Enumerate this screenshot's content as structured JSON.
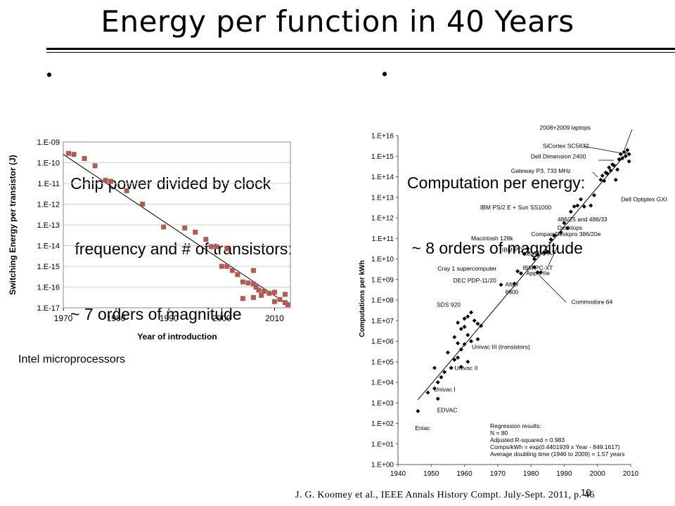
{
  "slide": {
    "title": "Energy per function in 40 Years",
    "bullet_left": [
      "Chip power divided by clock",
      " frequency and # of transistors:",
      "~ 7 orders of magnitude"
    ],
    "bullet_right": [
      "Computation per energy:",
      " ~ 8 orders of magnitude"
    ],
    "bullet_symbol": "•",
    "caption": "Intel microprocessors",
    "citation": "J. G. Koomey et al., IEEE Annals History Compt. July-Sept. 2011, p. 46",
    "page_number": "10"
  },
  "chart_data": [
    {
      "type": "scatter",
      "title": "",
      "xlabel": "Year of introduction",
      "ylabel": "Switching Energy per transistor (J)",
      "xlim": [
        1970,
        2013
      ],
      "ylim_exp": [
        -17,
        -9
      ],
      "log_scale_y": true,
      "x_ticks": [
        1970,
        1980,
        1990,
        2000,
        2010
      ],
      "y_ticks": [
        "1.E-09",
        "1.E-10",
        "1.E-11",
        "1.E-12",
        "1.E-13",
        "1.E-14",
        "1.E-15",
        "1.E-16",
        "1.E-17"
      ],
      "marker_color": "#b05a52",
      "trendline": {
        "x": [
          1970,
          2012
        ],
        "y_exp": [
          -9.6,
          -16.75
        ]
      },
      "points": [
        {
          "x": 1971,
          "y_exp": -9.55
        },
        {
          "x": 1972,
          "y_exp": -9.6
        },
        {
          "x": 1974,
          "y_exp": -9.8
        },
        {
          "x": 1976,
          "y_exp": -10.15
        },
        {
          "x": 1978,
          "y_exp": -10.85
        },
        {
          "x": 1979,
          "y_exp": -10.9
        },
        {
          "x": 1982,
          "y_exp": -11.35
        },
        {
          "x": 1985,
          "y_exp": -12.0
        },
        {
          "x": 1989,
          "y_exp": -13.1
        },
        {
          "x": 1993,
          "y_exp": -13.15
        },
        {
          "x": 1995,
          "y_exp": -13.35
        },
        {
          "x": 1997,
          "y_exp": -13.7
        },
        {
          "x": 1998,
          "y_exp": -14.05
        },
        {
          "x": 1999,
          "y_exp": -14.05
        },
        {
          "x": 2001,
          "y_exp": -14.15
        },
        {
          "x": 2000,
          "y_exp": -15.0
        },
        {
          "x": 2001,
          "y_exp": -15.0
        },
        {
          "x": 2002,
          "y_exp": -15.2
        },
        {
          "x": 2003,
          "y_exp": -15.4
        },
        {
          "x": 2004,
          "y_exp": -15.75
        },
        {
          "x": 2004,
          "y_exp": -16.55
        },
        {
          "x": 2005,
          "y_exp": -15.8
        },
        {
          "x": 2006,
          "y_exp": -15.85
        },
        {
          "x": 2006,
          "y_exp": -15.2
        },
        {
          "x": 2006,
          "y_exp": -16.5
        },
        {
          "x": 2006.5,
          "y_exp": -16.0
        },
        {
          "x": 2007,
          "y_exp": -16.15
        },
        {
          "x": 2007.5,
          "y_exp": -16.4
        },
        {
          "x": 2008,
          "y_exp": -16.2
        },
        {
          "x": 2009,
          "y_exp": -16.3
        },
        {
          "x": 2010,
          "y_exp": -16.25
        },
        {
          "x": 2010,
          "y_exp": -16.7
        },
        {
          "x": 2011,
          "y_exp": -16.6
        },
        {
          "x": 2012,
          "y_exp": -16.35
        },
        {
          "x": 2012,
          "y_exp": -16.75
        },
        {
          "x": 2012.5,
          "y_exp": -16.85
        }
      ]
    },
    {
      "type": "scatter",
      "title": "",
      "xlabel": "",
      "ylabel": "Computations per kWh",
      "xlim": [
        1940,
        2010
      ],
      "ylim_exp": [
        0,
        16
      ],
      "log_scale_y": true,
      "x_ticks": [
        1940,
        1950,
        1960,
        1970,
        1980,
        1990,
        2000,
        2010
      ],
      "y_ticks": [
        "1.E+00",
        "1.E+01",
        "1.E+02",
        "1.E+03",
        "1.E+04",
        "1.E+05",
        "1.E+06",
        "1.E+07",
        "1.E+08",
        "1.E+09",
        "1.E+10",
        "1.E+11",
        "1.E+12",
        "1.E+13",
        "1.E+14",
        "1.E+15",
        "1.E+16"
      ],
      "marker_color": "#000000",
      "trendline": {
        "x": [
          1946,
          2009
        ],
        "y_exp": [
          3.15,
          15.2
        ]
      },
      "points": [
        {
          "x": 1946,
          "y_exp": 2.6
        },
        {
          "x": 1949,
          "y_exp": 3.5
        },
        {
          "x": 1951,
          "y_exp": 3.7
        },
        {
          "x": 1951,
          "y_exp": 4.7
        },
        {
          "x": 1952,
          "y_exp": 4.0
        },
        {
          "x": 1952,
          "y_exp": 3.2
        },
        {
          "x": 1953,
          "y_exp": 4.25
        },
        {
          "x": 1954,
          "y_exp": 4.5
        },
        {
          "x": 1955,
          "y_exp": 5.45
        },
        {
          "x": 1956,
          "y_exp": 4.7
        },
        {
          "x": 1957,
          "y_exp": 5.1
        },
        {
          "x": 1957,
          "y_exp": 6.2
        },
        {
          "x": 1958,
          "y_exp": 6.9
        },
        {
          "x": 1958,
          "y_exp": 5.9
        },
        {
          "x": 1958,
          "y_exp": 5.2
        },
        {
          "x": 1959,
          "y_exp": 6.6
        },
        {
          "x": 1959,
          "y_exp": 5.6
        },
        {
          "x": 1959,
          "y_exp": 4.75
        },
        {
          "x": 1960,
          "y_exp": 7.1
        },
        {
          "x": 1960,
          "y_exp": 6.7
        },
        {
          "x": 1960,
          "y_exp": 5.85
        },
        {
          "x": 1961,
          "y_exp": 7.2
        },
        {
          "x": 1961,
          "y_exp": 5.0
        },
        {
          "x": 1961,
          "y_exp": 6.3
        },
        {
          "x": 1962,
          "y_exp": 7.4
        },
        {
          "x": 1962,
          "y_exp": 6.0
        },
        {
          "x": 1963,
          "y_exp": 7.0
        },
        {
          "x": 1964,
          "y_exp": 6.85
        },
        {
          "x": 1964,
          "y_exp": 6.1
        },
        {
          "x": 1965,
          "y_exp": 6.75
        },
        {
          "x": 1971,
          "y_exp": 8.75
        },
        {
          "x": 1975,
          "y_exp": 8.8
        },
        {
          "x": 1976,
          "y_exp": 9.4
        },
        {
          "x": 1977,
          "y_exp": 9.3
        },
        {
          "x": 1978,
          "y_exp": 10.25
        },
        {
          "x": 1979,
          "y_exp": 10.5
        },
        {
          "x": 1981,
          "y_exp": 9.6
        },
        {
          "x": 1981,
          "y_exp": 10.0
        },
        {
          "x": 1982,
          "y_exp": 10.2
        },
        {
          "x": 1982,
          "y_exp": 9.35
        },
        {
          "x": 1983,
          "y_exp": 9.35
        },
        {
          "x": 1984,
          "y_exp": 10.3
        },
        {
          "x": 1985,
          "y_exp": 10.35
        },
        {
          "x": 1986,
          "y_exp": 10.95
        },
        {
          "x": 1987,
          "y_exp": 11.15
        },
        {
          "x": 1989,
          "y_exp": 11.3
        },
        {
          "x": 1990,
          "y_exp": 11.75
        },
        {
          "x": 1991,
          "y_exp": 11.5
        },
        {
          "x": 1992,
          "y_exp": 12.3
        },
        {
          "x": 1993,
          "y_exp": 12.55
        },
        {
          "x": 1994,
          "y_exp": 12.6
        },
        {
          "x": 1995,
          "y_exp": 12.9
        },
        {
          "x": 1996,
          "y_exp": 12.55
        },
        {
          "x": 1998,
          "y_exp": 12.6
        },
        {
          "x": 1999,
          "y_exp": 13.1
        },
        {
          "x": 2001,
          "y_exp": 13.85
        },
        {
          "x": 2001.5,
          "y_exp": 14.05
        },
        {
          "x": 2002,
          "y_exp": 13.8
        },
        {
          "x": 2002.5,
          "y_exp": 14.2
        },
        {
          "x": 2003,
          "y_exp": 14.15
        },
        {
          "x": 2003.5,
          "y_exp": 14.45
        },
        {
          "x": 2004,
          "y_exp": 14.3
        },
        {
          "x": 2004.5,
          "y_exp": 14.6
        },
        {
          "x": 2005,
          "y_exp": 14.55
        },
        {
          "x": 2005.5,
          "y_exp": 13.85
        },
        {
          "x": 2006,
          "y_exp": 14.35
        },
        {
          "x": 2006.5,
          "y_exp": 14.85
        },
        {
          "x": 2007,
          "y_exp": 15.1
        },
        {
          "x": 2007.5,
          "y_exp": 14.9
        },
        {
          "x": 2008,
          "y_exp": 15.2
        },
        {
          "x": 2008.5,
          "y_exp": 15.0
        },
        {
          "x": 2009,
          "y_exp": 15.3
        },
        {
          "x": 2009.5,
          "y_exp": 14.75
        },
        {
          "x": 2009.5,
          "y_exp": 15.1
        }
      ],
      "annotations": [
        {
          "text": "2008+2009 laptops",
          "x": 2008,
          "y_exp": 15.2
        },
        {
          "text": "SiCortex SC5832",
          "x": 2007,
          "y_exp": 15.0
        },
        {
          "text": "Dell Dimension 2400",
          "x": 2003,
          "y_exp": 14.75
        },
        {
          "text": "Gateway P3, 733 MHz",
          "x": 2000,
          "y_exp": 14.15
        },
        {
          "text": "Dell Optiplex GXI",
          "x": 1998,
          "y_exp": 12.6
        },
        {
          "text": "IBM PS/2 E + Sun SS1000",
          "x": 1992,
          "y_exp": 12.3
        },
        {
          "text": "486/25 and 486/33",
          "x": 1992,
          "y_exp": 11.7
        },
        {
          "text": "Desktops",
          "x": 1992,
          "y_exp": 11.7
        },
        {
          "text": "Compaq Deskpro 386/20e",
          "x": 1987,
          "y_exp": 11.15
        },
        {
          "text": "Macintosh 128k",
          "x": 1984,
          "y_exp": 10.8
        },
        {
          "text": "IBM PC",
          "x": 1981,
          "y_exp": 10.2
        },
        {
          "text": "IBM PC-AT",
          "x": 1984,
          "y_exp": 10.3
        },
        {
          "text": "IBM PC-XT",
          "x": 1983,
          "y_exp": 9.6
        },
        {
          "text": "Apple IIe",
          "x": 1983,
          "y_exp": 9.35
        },
        {
          "text": "Cray 1 supercomputer",
          "x": 1976,
          "y_exp": 9.4
        },
        {
          "text": "DEC PDP-11/20",
          "x": 1971,
          "y_exp": 8.75
        },
        {
          "text": "Altair",
          "x": 1975,
          "y_exp": 8.8
        },
        {
          "text": "8800",
          "x": 1975,
          "y_exp": 8.8
        },
        {
          "text": "Commodore 64",
          "x": 1982,
          "y_exp": 9.35
        },
        {
          "text": "SDS 920",
          "x": 1962,
          "y_exp": 7.4
        },
        {
          "text": "Univac III (transistors)",
          "x": 1962,
          "y_exp": 6.0
        },
        {
          "text": "Univac II",
          "x": 1957,
          "y_exp": 4.7
        },
        {
          "text": "Univac I",
          "x": 1951,
          "y_exp": 3.7
        },
        {
          "text": "EDVAC",
          "x": 1952,
          "y_exp": 3.2
        },
        {
          "text": "Eniac",
          "x": 1946,
          "y_exp": 2.6
        }
      ],
      "regression_box": [
        "Regression results:",
        "N = 80",
        "Adjusted R-squared = 0.983",
        "Comps/kWh = exp(0.4401939 x Year - 849.1617)",
        "Average doubling time (1946 to 2009) = 1.57 years"
      ]
    }
  ]
}
